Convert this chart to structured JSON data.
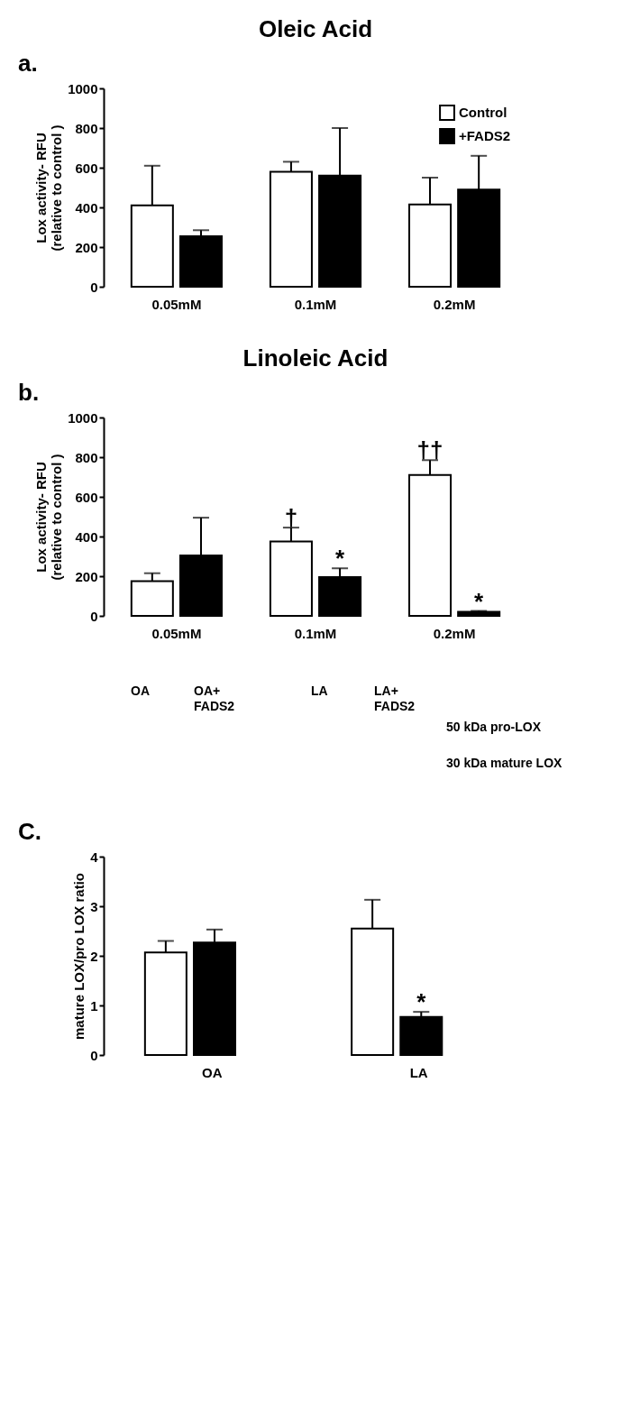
{
  "chart_data": [
    {
      "type": "bar",
      "title": "Oleic Acid",
      "ylabel": "Lox activity- RFU\n(relative to control )",
      "categories": [
        "0.05mM",
        "0.1mM",
        "0.2mM"
      ],
      "ylim": [
        0,
        1000
      ],
      "yticks": [
        0,
        200,
        400,
        600,
        800,
        1000
      ],
      "legend": "top right",
      "annotations": [
        "a."
      ],
      "series": [
        {
          "name": "Control",
          "color": "#ffffff",
          "values": [
            410,
            580,
            415
          ],
          "errors": [
            [
              410,
              610
            ],
            [
              580,
              630
            ],
            [
              415,
              550
            ]
          ]
        },
        {
          "name": "+FADS2",
          "color": "#000000",
          "values": [
            255,
            560,
            490
          ],
          "errors": [
            [
              255,
              285
            ],
            [
              560,
              800
            ],
            [
              490,
              660
            ]
          ]
        }
      ]
    },
    {
      "type": "bar",
      "title": "Linoleic Acid",
      "ylabel": "Lox activity- RFU\n(relative to control )",
      "categories": [
        "0.05mM",
        "0.1mM",
        "0.2mM"
      ],
      "ylim": [
        0,
        1000
      ],
      "yticks": [
        0,
        200,
        400,
        600,
        800,
        1000
      ],
      "annotations": [
        "b.",
        "†",
        "††",
        {
          "text": "*",
          "x": "0.1mM",
          "y": 240
        },
        {
          "text": "*",
          "x": "0.2mM",
          "y": 25
        }
      ],
      "series": [
        {
          "color": "#ffffff",
          "values": [
            175,
            375,
            710
          ],
          "errors": [
            [
              175,
              215
            ],
            [
              375,
              445
            ],
            [
              710,
              785
            ]
          ]
        },
        {
          "color": "#000000",
          "values": [
            305,
            195,
            20
          ],
          "errors": [
            [
              305,
              495
            ],
            [
              195,
              240
            ],
            [
              20,
              25
            ]
          ]
        }
      ]
    },
    {
      "type": "other",
      "annotations": [
        "OA",
        "OA+\nFADS2",
        "LA",
        "LA+\nFADS2",
        "50 kDa pro-LOX",
        "30 kDa mature LOX"
      ]
    },
    {
      "type": "bar",
      "ylabel": "mature LOX/pro LOX ratio",
      "categories": [
        "OA",
        "LA"
      ],
      "ylim": [
        0,
        4
      ],
      "yticks": [
        0,
        1,
        2,
        3,
        4
      ],
      "annotations": [
        "C.",
        {
          "text": "*",
          "x": "LA",
          "y": 0.87
        }
      ],
      "series": [
        {
          "color": "#ffffff",
          "values": [
            2.07,
            2.55
          ],
          "errors": [
            [
              2.07,
              2.3
            ],
            [
              2.55,
              3.13
            ]
          ]
        },
        {
          "color": "#000000",
          "values": [
            2.27,
            0.77
          ],
          "errors": [
            [
              2.27,
              2.53
            ],
            [
              0.77,
              0.87
            ]
          ]
        }
      ]
    }
  ]
}
